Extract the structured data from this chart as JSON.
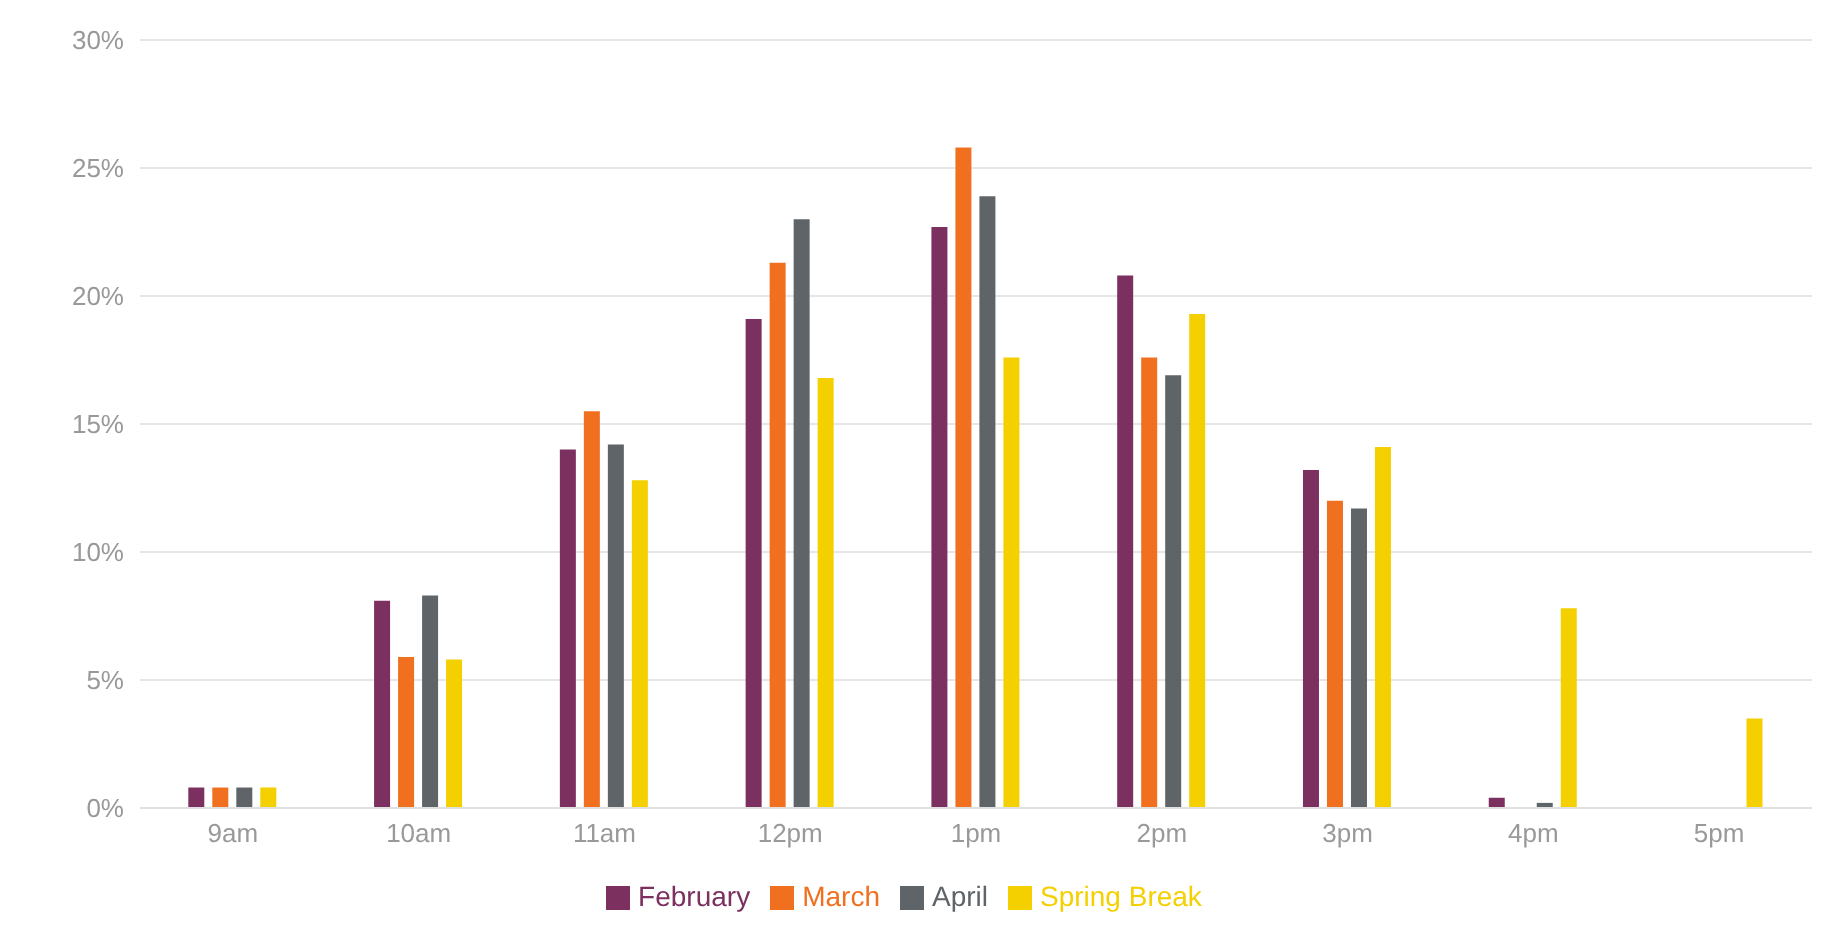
{
  "chart_data": {
    "type": "bar",
    "categories": [
      "9am",
      "10am",
      "11am",
      "12pm",
      "1pm",
      "2pm",
      "3pm",
      "4pm",
      "5pm"
    ],
    "series": [
      {
        "name": "February",
        "color": "#7b3060",
        "values": [
          0.8,
          8.1,
          14.0,
          19.1,
          22.7,
          20.8,
          13.2,
          0.4,
          0
        ]
      },
      {
        "name": "March",
        "color": "#f07020",
        "values": [
          0.8,
          5.9,
          15.5,
          21.3,
          25.8,
          17.6,
          12.0,
          0,
          0
        ]
      },
      {
        "name": "April",
        "color": "#5f6468",
        "values": [
          0.8,
          8.3,
          14.2,
          23.0,
          23.9,
          16.9,
          11.7,
          0.2,
          0
        ]
      },
      {
        "name": "Spring Break",
        "color": "#f5d000",
        "values": [
          0.8,
          5.8,
          12.8,
          16.8,
          17.6,
          19.3,
          14.1,
          7.8,
          3.5
        ]
      }
    ],
    "ylim": [
      0,
      30
    ],
    "yticks": [
      {
        "value": 0,
        "label": "0%"
      },
      {
        "value": 5,
        "label": "5%"
      },
      {
        "value": 10,
        "label": "10%"
      },
      {
        "value": 15,
        "label": "15%"
      },
      {
        "value": 20,
        "label": "20%"
      },
      {
        "value": 25,
        "label": "25%"
      },
      {
        "value": 30,
        "label": "30%"
      }
    ],
    "grid": "y",
    "legend": "bottom"
  }
}
